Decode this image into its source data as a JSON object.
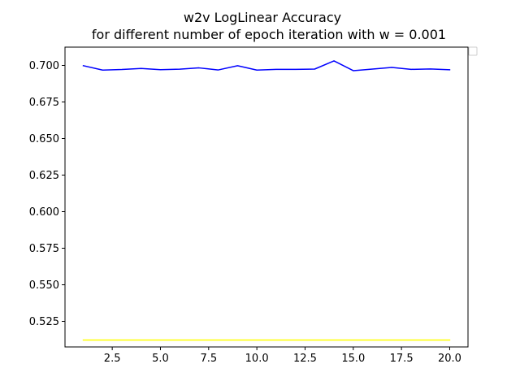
{
  "chart_data": {
    "type": "line",
    "title": "w2v LogLinear Accuracy",
    "subtitle": "for different number of epoch iteration with w = 0.001",
    "xlabel": "",
    "ylabel": "",
    "xlim": [
      0.05,
      20.95
    ],
    "ylim": [
      0.5075,
      0.7125
    ],
    "grid": false,
    "legend": "top-right (empty)",
    "x_ticks": [
      2.5,
      5.0,
      7.5,
      10.0,
      12.5,
      15.0,
      17.5,
      20.0
    ],
    "x_tick_labels": [
      "2.5",
      "5.0",
      "7.5",
      "10.0",
      "12.5",
      "15.0",
      "17.5",
      "20.0"
    ],
    "y_ticks": [
      0.525,
      0.55,
      0.575,
      0.6,
      0.625,
      0.65,
      0.675,
      0.7
    ],
    "y_tick_labels": [
      "0.525",
      "0.550",
      "0.575",
      "0.600",
      "0.625",
      "0.650",
      "0.675",
      "0.700"
    ],
    "x": [
      1,
      2,
      3,
      4,
      5,
      6,
      7,
      8,
      9,
      10,
      11,
      12,
      13,
      14,
      15,
      16,
      17,
      18,
      19,
      20
    ],
    "series": [
      {
        "color": "#0000ff",
        "values": [
          0.6998,
          0.6968,
          0.6972,
          0.6979,
          0.6971,
          0.6974,
          0.6983,
          0.6969,
          0.6998,
          0.6968,
          0.6973,
          0.6973,
          0.6975,
          0.7031,
          0.6964,
          0.6975,
          0.6986,
          0.6973,
          0.6976,
          0.697
        ]
      },
      {
        "color": "#ffff00",
        "values": [
          0.5122,
          0.5122,
          0.5122,
          0.5122,
          0.5122,
          0.5122,
          0.5122,
          0.5122,
          0.5122,
          0.5122,
          0.5122,
          0.5122,
          0.5122,
          0.5122,
          0.5122,
          0.5122,
          0.5122,
          0.5122,
          0.5122,
          0.5122
        ]
      }
    ]
  }
}
